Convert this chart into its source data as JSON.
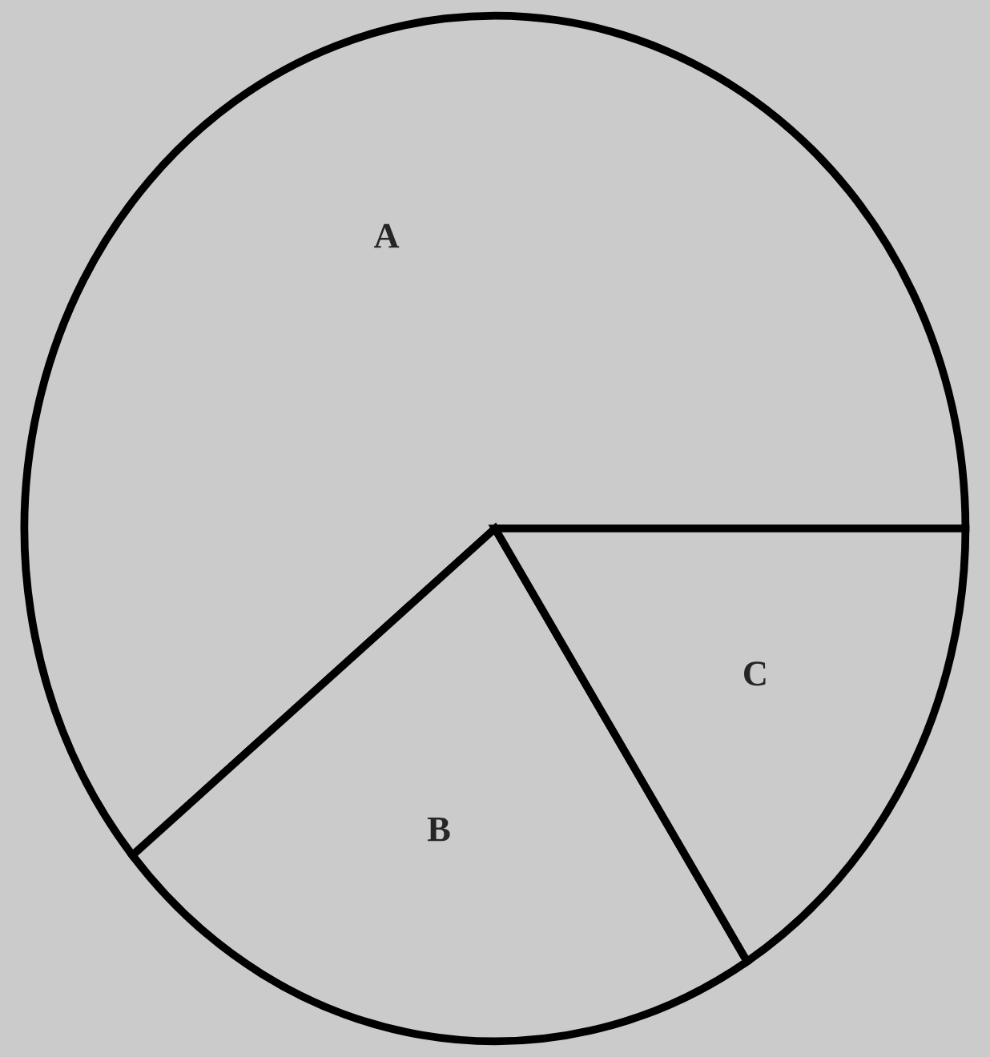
{
  "chart_data": {
    "type": "pie",
    "categories": [
      "A",
      "B",
      "C"
    ],
    "values": [
      61,
      23,
      16
    ],
    "colors": [
      "#cbcbcb",
      "#cbcbcb",
      "#cbcbcb"
    ]
  }
}
